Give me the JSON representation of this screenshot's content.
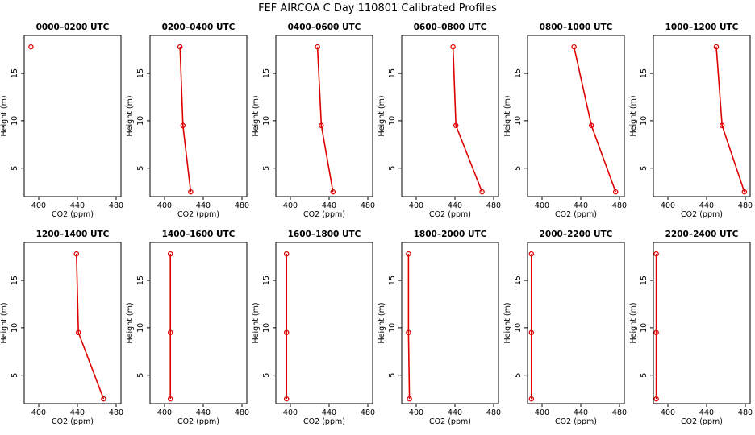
{
  "figure_title": "FEF AIRCOA C  Day 110801  Calibrated Profiles",
  "colors": {
    "series": "#dd0000",
    "axis": "#000000",
    "background": "#ffffff"
  },
  "chart_data": [
    {
      "type": "line",
      "title": "0000–0200 UTC",
      "xlabel": "CO2 (ppm)",
      "ylabel": "Height (m)",
      "xlim": [
        385,
        485
      ],
      "ylim": [
        2,
        19
      ],
      "xticks": [
        400,
        440,
        480
      ],
      "yticks": [
        5,
        10,
        15
      ],
      "points": [
        {
          "x": 392,
          "y": 17.8
        }
      ]
    },
    {
      "type": "line",
      "title": "0200–0400 UTC",
      "xlabel": "CO2 (ppm)",
      "ylabel": "Height (m)",
      "xlim": [
        385,
        485
      ],
      "ylim": [
        2,
        19
      ],
      "xticks": [
        400,
        440,
        480
      ],
      "yticks": [
        5,
        10,
        15
      ],
      "points": [
        {
          "x": 416,
          "y": 17.8
        },
        {
          "x": 419,
          "y": 9.5
        },
        {
          "x": 427,
          "y": 2.5
        }
      ]
    },
    {
      "type": "line",
      "title": "0400–0600 UTC",
      "xlabel": "CO2 (ppm)",
      "ylabel": "Height (m)",
      "xlim": [
        385,
        485
      ],
      "ylim": [
        2,
        19
      ],
      "xticks": [
        400,
        440,
        480
      ],
      "yticks": [
        5,
        10,
        15
      ],
      "points": [
        {
          "x": 428,
          "y": 17.8
        },
        {
          "x": 432,
          "y": 9.5
        },
        {
          "x": 444,
          "y": 2.5
        }
      ]
    },
    {
      "type": "line",
      "title": "0600–0800 UTC",
      "xlabel": "CO2 (ppm)",
      "ylabel": "Height (m)",
      "xlim": [
        385,
        485
      ],
      "ylim": [
        2,
        19
      ],
      "xticks": [
        400,
        440,
        480
      ],
      "yticks": [
        5,
        10,
        15
      ],
      "points": [
        {
          "x": 438,
          "y": 17.8
        },
        {
          "x": 441,
          "y": 9.5
        },
        {
          "x": 468,
          "y": 2.5
        }
      ]
    },
    {
      "type": "line",
      "title": "0800–1000 UTC",
      "xlabel": "CO2 (ppm)",
      "ylabel": "Height (m)",
      "xlim": [
        385,
        485
      ],
      "ylim": [
        2,
        19
      ],
      "xticks": [
        400,
        440,
        480
      ],
      "yticks": [
        5,
        10,
        15
      ],
      "points": [
        {
          "x": 433,
          "y": 17.8
        },
        {
          "x": 451,
          "y": 9.5
        },
        {
          "x": 476,
          "y": 2.5
        }
      ]
    },
    {
      "type": "line",
      "title": "1000–1200 UTC",
      "xlabel": "CO2 (ppm)",
      "ylabel": "Height (m)",
      "xlim": [
        385,
        485
      ],
      "ylim": [
        2,
        19
      ],
      "xticks": [
        400,
        440,
        480
      ],
      "yticks": [
        5,
        10,
        15
      ],
      "points": [
        {
          "x": 450,
          "y": 17.8
        },
        {
          "x": 456,
          "y": 9.5
        },
        {
          "x": 479,
          "y": 2.5
        }
      ]
    },
    {
      "type": "line",
      "title": "1200–1400 UTC",
      "xlabel": "CO2 (ppm)",
      "ylabel": "Height (m)",
      "xlim": [
        385,
        485
      ],
      "ylim": [
        2,
        19
      ],
      "xticks": [
        400,
        440,
        480
      ],
      "yticks": [
        5,
        10,
        15
      ],
      "points": [
        {
          "x": 439,
          "y": 17.8
        },
        {
          "x": 441,
          "y": 9.5
        },
        {
          "x": 467,
          "y": 2.5
        }
      ]
    },
    {
      "type": "line",
      "title": "1400–1600 UTC",
      "xlabel": "CO2 (ppm)",
      "ylabel": "Height (m)",
      "xlim": [
        385,
        485
      ],
      "ylim": [
        2,
        19
      ],
      "xticks": [
        400,
        440,
        480
      ],
      "yticks": [
        5,
        10,
        15
      ],
      "points": [
        {
          "x": 406,
          "y": 17.8
        },
        {
          "x": 406,
          "y": 9.5
        },
        {
          "x": 406,
          "y": 2.5
        }
      ]
    },
    {
      "type": "line",
      "title": "1600–1800 UTC",
      "xlabel": "CO2 (ppm)",
      "ylabel": "Height (m)",
      "xlim": [
        385,
        485
      ],
      "ylim": [
        2,
        19
      ],
      "xticks": [
        400,
        440,
        480
      ],
      "yticks": [
        5,
        10,
        15
      ],
      "points": [
        {
          "x": 396,
          "y": 17.8
        },
        {
          "x": 396,
          "y": 9.5
        },
        {
          "x": 396,
          "y": 2.5
        }
      ]
    },
    {
      "type": "line",
      "title": "1800–2000 UTC",
      "xlabel": "CO2 (ppm)",
      "ylabel": "Height (m)",
      "xlim": [
        385,
        485
      ],
      "ylim": [
        2,
        19
      ],
      "xticks": [
        400,
        440,
        480
      ],
      "yticks": [
        5,
        10,
        15
      ],
      "points": [
        {
          "x": 392,
          "y": 17.8
        },
        {
          "x": 392,
          "y": 9.5
        },
        {
          "x": 393,
          "y": 2.5
        }
      ]
    },
    {
      "type": "line",
      "title": "2000–2200 UTC",
      "xlabel": "CO2 (ppm)",
      "ylabel": "Height (m)",
      "xlim": [
        385,
        485
      ],
      "ylim": [
        2,
        19
      ],
      "xticks": [
        400,
        440,
        480
      ],
      "yticks": [
        5,
        10,
        15
      ],
      "points": [
        {
          "x": 389,
          "y": 17.8
        },
        {
          "x": 389,
          "y": 9.5
        },
        {
          "x": 389,
          "y": 2.5
        }
      ]
    },
    {
      "type": "line",
      "title": "2200–2400 UTC",
      "xlabel": "CO2 (ppm)",
      "ylabel": "Height (m)",
      "xlim": [
        385,
        485
      ],
      "ylim": [
        2,
        19
      ],
      "xticks": [
        400,
        440,
        480
      ],
      "yticks": [
        5,
        10,
        15
      ],
      "points": [
        {
          "x": 388,
          "y": 17.8
        },
        {
          "x": 388,
          "y": 9.5
        },
        {
          "x": 388,
          "y": 2.5
        }
      ]
    }
  ]
}
